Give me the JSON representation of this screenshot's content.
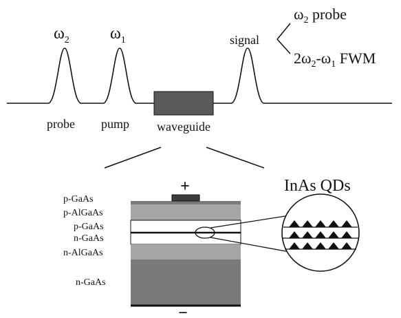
{
  "pulses": {
    "probe": {
      "freq_symbol": "ω",
      "freq_sub": "2",
      "label": "probe"
    },
    "pump": {
      "freq_symbol": "ω",
      "freq_sub": "1",
      "label": "pump"
    },
    "signal": {
      "label": "signal"
    }
  },
  "waveguide": {
    "label": "waveguide"
  },
  "signal_components": {
    "probe": {
      "symbol": "ω",
      "sub": "2",
      "text": " probe"
    },
    "fwm": {
      "prefix": "2ω",
      "sub1": "2",
      "mid": "-ω",
      "sub2": "1",
      "text": " FWM"
    }
  },
  "device": {
    "plus": "+",
    "minus": "−",
    "layers": [
      "p-GaAs",
      "p-AlGaAs",
      "p-GaAs",
      "n-GaAs",
      "n-AlGaAs",
      "n-GaAs"
    ]
  },
  "qd_inset": {
    "title": "InAs QDs"
  },
  "colors": {
    "line": "#111111",
    "waveguide": "#5a5a5a",
    "cladding": "#a6a6a6",
    "substrate": "#7a7a7a",
    "contact": "#3c3c3c",
    "dot": "#111111"
  }
}
